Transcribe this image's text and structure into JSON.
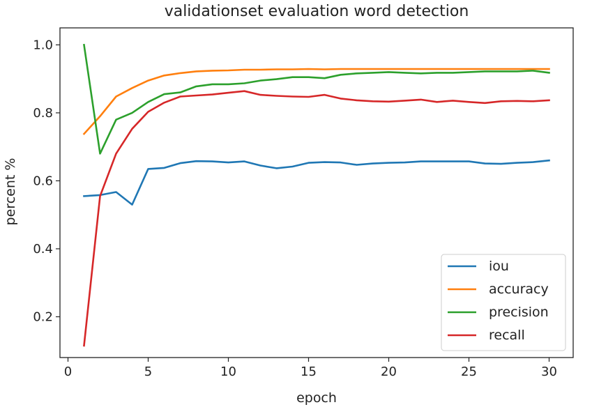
{
  "chart_data": {
    "type": "line",
    "title": "validationset evaluation word detection",
    "xlabel": "epoch",
    "ylabel": "percent %",
    "xlim": [
      -0.5,
      31.5
    ],
    "ylim": [
      0.08,
      1.05
    ],
    "xticks": [
      0,
      5,
      10,
      15,
      20,
      25,
      30
    ],
    "xtick_labels": [
      "0",
      "5",
      "10",
      "15",
      "20",
      "25",
      "30"
    ],
    "yticks": [
      0.2,
      0.4,
      0.6,
      0.8,
      1.0
    ],
    "ytick_labels": [
      "0.2",
      "0.4",
      "0.6",
      "0.8",
      "1.0"
    ],
    "grid": false,
    "legend_position": "lower-right",
    "x": [
      1,
      2,
      3,
      4,
      5,
      6,
      7,
      8,
      9,
      10,
      11,
      12,
      13,
      14,
      15,
      16,
      17,
      18,
      19,
      20,
      21,
      22,
      23,
      24,
      25,
      26,
      27,
      28,
      29,
      30
    ],
    "series": [
      {
        "name": "iou",
        "color": "#1f77b4",
        "values": [
          0.555,
          0.558,
          0.567,
          0.53,
          0.635,
          0.638,
          0.652,
          0.658,
          0.657,
          0.654,
          0.657,
          0.645,
          0.637,
          0.642,
          0.653,
          0.655,
          0.654,
          0.647,
          0.651,
          0.653,
          0.654,
          0.657,
          0.657,
          0.657,
          0.657,
          0.651,
          0.65,
          0.653,
          0.655,
          0.66
        ]
      },
      {
        "name": "accuracy",
        "color": "#ff7f0e",
        "values": [
          0.738,
          0.79,
          0.848,
          0.873,
          0.895,
          0.91,
          0.917,
          0.922,
          0.924,
          0.925,
          0.927,
          0.927,
          0.928,
          0.928,
          0.929,
          0.928,
          0.929,
          0.929,
          0.929,
          0.929,
          0.929,
          0.929,
          0.929,
          0.929,
          0.929,
          0.929,
          0.929,
          0.929,
          0.929,
          0.929
        ]
      },
      {
        "name": "precision",
        "color": "#2ca02c",
        "values": [
          1.0,
          0.68,
          0.78,
          0.8,
          0.832,
          0.855,
          0.86,
          0.878,
          0.884,
          0.884,
          0.887,
          0.895,
          0.899,
          0.905,
          0.905,
          0.902,
          0.912,
          0.916,
          0.918,
          0.92,
          0.918,
          0.916,
          0.918,
          0.918,
          0.92,
          0.922,
          0.922,
          0.922,
          0.924,
          0.918
        ]
      },
      {
        "name": "recall",
        "color": "#d62728",
        "values": [
          0.115,
          0.555,
          0.68,
          0.753,
          0.803,
          0.83,
          0.848,
          0.851,
          0.854,
          0.859,
          0.864,
          0.853,
          0.85,
          0.848,
          0.847,
          0.853,
          0.842,
          0.837,
          0.834,
          0.833,
          0.836,
          0.839,
          0.832,
          0.836,
          0.832,
          0.829,
          0.834,
          0.835,
          0.834,
          0.837
        ]
      }
    ]
  }
}
